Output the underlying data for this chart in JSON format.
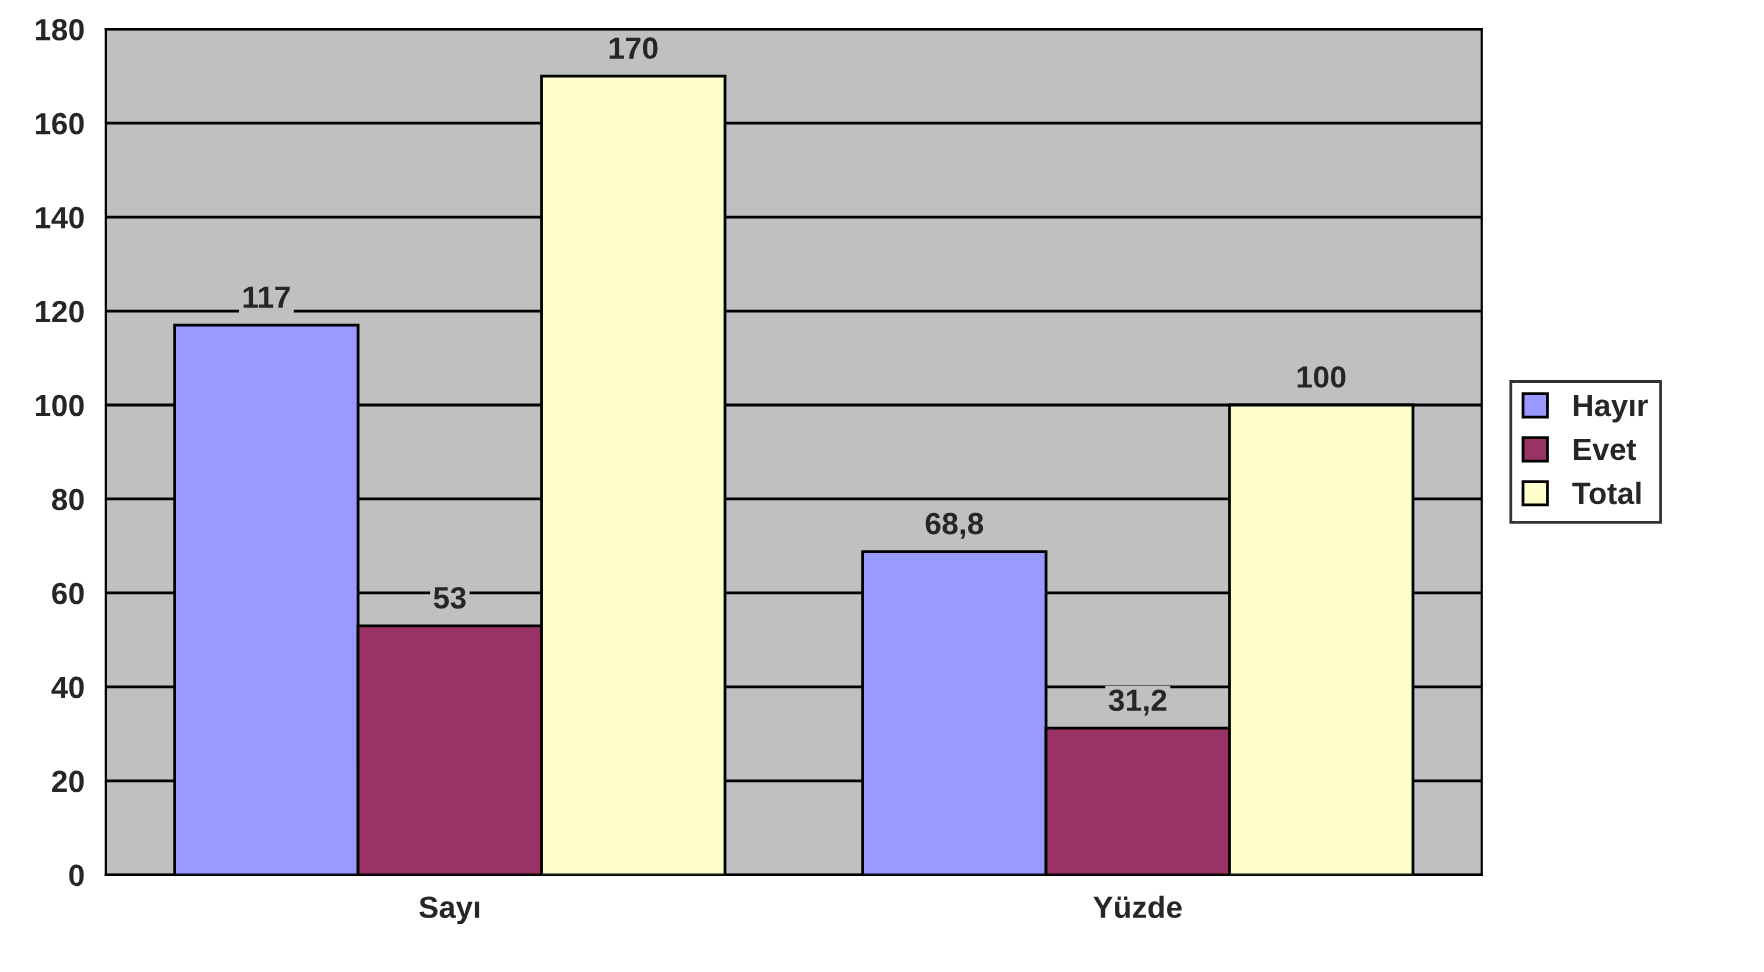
{
  "chart_data": {
    "type": "bar",
    "categories": [
      "Sayı",
      "Yüzde"
    ],
    "series": [
      {
        "name": "Hayır",
        "color": "#9999ff",
        "values": [
          117,
          68.8
        ],
        "value_labels": [
          "117",
          "68,8"
        ]
      },
      {
        "name": "Evet",
        "color": "#993366",
        "values": [
          53,
          31.2
        ],
        "value_labels": [
          "53",
          "31,2"
        ]
      },
      {
        "name": "Total",
        "color": "#ffffcc",
        "values": [
          170,
          100
        ],
        "value_labels": [
          "170",
          "100"
        ]
      }
    ],
    "ylim": [
      0,
      180
    ],
    "yticks": [
      0,
      20,
      40,
      60,
      80,
      100,
      120,
      140,
      160,
      180
    ],
    "grid": "y",
    "legend": "right"
  }
}
